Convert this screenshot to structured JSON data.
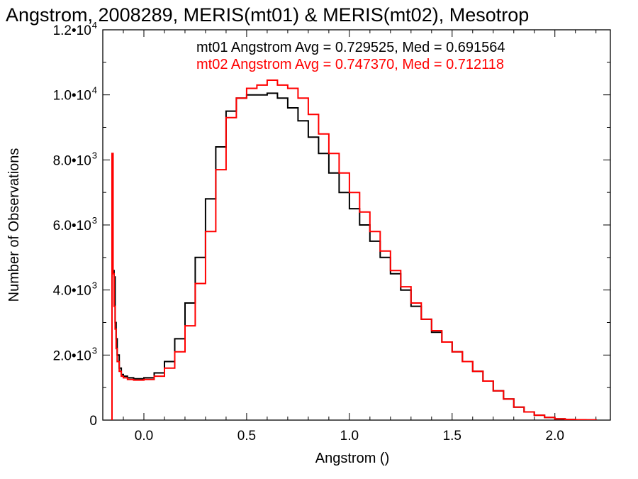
{
  "chart_data": {
    "type": "line",
    "step": true,
    "title": "Angstrom, 2008289, MERIS(mt01) & MERIS(mt02), Mesotrop",
    "xlabel": "Angstrom ()",
    "ylabel": "Number of Observations",
    "xlim": [
      -0.2,
      2.27
    ],
    "ylim": [
      0,
      12000
    ],
    "xticks": [
      {
        "value": 0.0,
        "label": "0.0"
      },
      {
        "value": 0.5,
        "label": "0.5"
      },
      {
        "value": 1.0,
        "label": "1.0"
      },
      {
        "value": 1.5,
        "label": "1.5"
      },
      {
        "value": 2.0,
        "label": "2.0"
      }
    ],
    "yticks": [
      {
        "value": 0,
        "mantissa": "0",
        "exponent": ""
      },
      {
        "value": 2000,
        "mantissa": "2.0•10",
        "exponent": "3"
      },
      {
        "value": 4000,
        "mantissa": "4.0•10",
        "exponent": "3"
      },
      {
        "value": 6000,
        "mantissa": "6.0•10",
        "exponent": "3"
      },
      {
        "value": 8000,
        "mantissa": "8.0•10",
        "exponent": "3"
      },
      {
        "value": 10000,
        "mantissa": "1.0•10",
        "exponent": "4"
      },
      {
        "value": 12000,
        "mantissa": "1.2•10",
        "exponent": "4"
      }
    ],
    "annotations": [
      {
        "text": "mt01 Angstrom Avg = 0.729525, Med = 0.691564",
        "color": "#000000"
      },
      {
        "text": "mt02 Angstrom Avg = 0.747370, Med = 0.712118",
        "color": "#ff0000"
      }
    ],
    "series": [
      {
        "color": "#000000",
        "x": [
          -0.16,
          -0.155,
          -0.15,
          -0.145,
          -0.14,
          -0.135,
          -0.13,
          -0.12,
          -0.11,
          -0.1,
          -0.08,
          -0.05,
          0.0,
          0.05,
          0.1,
          0.15,
          0.2,
          0.25,
          0.3,
          0.35,
          0.4,
          0.45,
          0.5,
          0.55,
          0.6,
          0.65,
          0.7,
          0.75,
          0.8,
          0.85,
          0.9,
          0.95,
          1.0,
          1.05,
          1.1,
          1.15,
          1.2,
          1.25,
          1.3,
          1.35,
          1.4,
          1.45,
          1.5,
          1.55,
          1.6,
          1.65,
          1.7,
          1.75,
          1.8,
          1.85,
          1.9,
          1.95,
          2.0,
          2.05,
          2.1,
          2.15,
          2.2
        ],
        "y": [
          0,
          4800,
          4600,
          4400,
          3000,
          2500,
          2000,
          1600,
          1400,
          1350,
          1300,
          1270,
          1300,
          1450,
          1800,
          2500,
          3600,
          5000,
          6800,
          8400,
          9500,
          9900,
          10000,
          10000,
          10050,
          9900,
          9600,
          9200,
          8700,
          8200,
          7600,
          7000,
          6500,
          6000,
          5500,
          5000,
          4500,
          4000,
          3500,
          3100,
          2700,
          2400,
          2100,
          1800,
          1500,
          1200,
          900,
          650,
          400,
          250,
          150,
          80,
          40,
          20,
          10,
          5,
          0
        ]
      },
      {
        "color": "#ff0000",
        "x": [
          -0.16,
          -0.155,
          -0.15,
          -0.145,
          -0.14,
          -0.135,
          -0.13,
          -0.12,
          -0.11,
          -0.1,
          -0.08,
          -0.05,
          0.0,
          0.05,
          0.1,
          0.15,
          0.2,
          0.25,
          0.3,
          0.35,
          0.4,
          0.45,
          0.5,
          0.55,
          0.6,
          0.65,
          0.7,
          0.75,
          0.8,
          0.85,
          0.9,
          0.95,
          1.0,
          1.05,
          1.1,
          1.15,
          1.2,
          1.25,
          1.3,
          1.35,
          1.4,
          1.45,
          1.5,
          1.55,
          1.6,
          1.65,
          1.7,
          1.75,
          1.8,
          1.85,
          1.9,
          1.95,
          2.0,
          2.05,
          2.1,
          2.15,
          2.2
        ],
        "y": [
          0,
          8200,
          4500,
          3500,
          2800,
          2200,
          1800,
          1500,
          1350,
          1300,
          1250,
          1230,
          1250,
          1350,
          1600,
          2100,
          2900,
          4200,
          5800,
          7700,
          9300,
          9900,
          10200,
          10300,
          10450,
          10300,
          10200,
          9900,
          9400,
          8800,
          8200,
          7600,
          7000,
          6400,
          5800,
          5200,
          4600,
          4100,
          3600,
          3100,
          2750,
          2400,
          2100,
          1800,
          1500,
          1200,
          900,
          650,
          400,
          250,
          150,
          80,
          40,
          20,
          10,
          5,
          0
        ]
      }
    ]
  }
}
